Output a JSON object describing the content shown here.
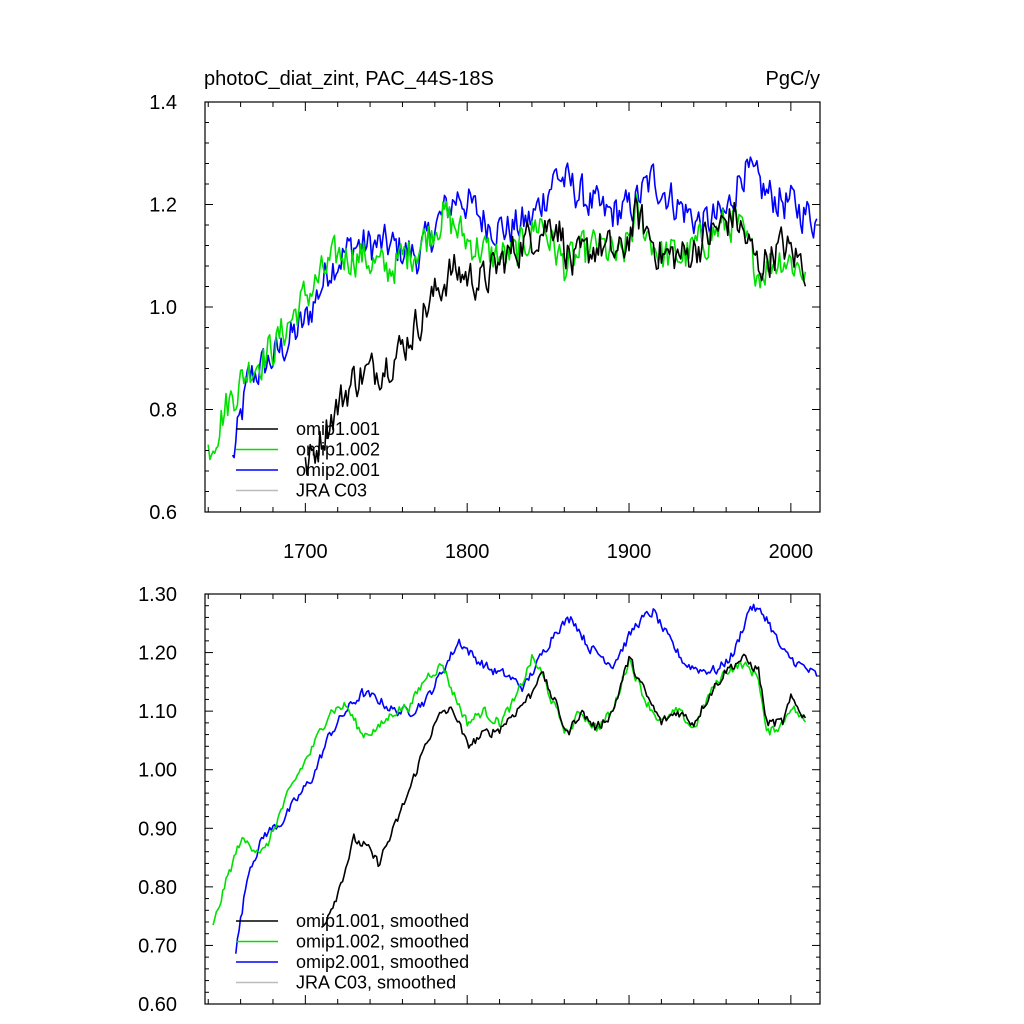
{
  "chart_data": [
    {
      "type": "line",
      "title": "photoC_diat_zint, PAC_44S-18S",
      "units": "PgC/y",
      "xlabel": "",
      "ylabel": "",
      "xlim": [
        1638,
        2018
      ],
      "ylim": [
        0.6,
        1.4
      ],
      "xticks": [
        1700,
        1800,
        1900,
        2000
      ],
      "yticks": [
        0.6,
        0.8,
        1.0,
        1.2,
        1.4
      ],
      "ytick_labels": [
        "0.6",
        "0.8",
        "1.0",
        "1.2",
        "1.4"
      ],
      "legend": [
        {
          "label": "omip1.001",
          "color": "#000000"
        },
        {
          "label": "omip1.002",
          "color": "#00e000"
        },
        {
          "label": "omip2.001",
          "color": "#0000ff"
        },
        {
          "label": "JRA C03",
          "color": "#bbbbbb"
        }
      ],
      "series": [
        {
          "name": "omip1.001",
          "color": "#000000",
          "noise": 0.035,
          "x": [
            1700,
            1715,
            1730,
            1745,
            1760,
            1775,
            1790,
            1800,
            1810,
            1825,
            1840,
            1855,
            1865,
            1880,
            1895,
            1905,
            1920,
            1935,
            1950,
            1965,
            1980,
            1995,
            2009
          ],
          "y": [
            0.68,
            0.78,
            0.86,
            0.88,
            0.92,
            1.0,
            1.07,
            1.06,
            1.05,
            1.1,
            1.14,
            1.17,
            1.08,
            1.12,
            1.1,
            1.18,
            1.1,
            1.1,
            1.14,
            1.18,
            1.08,
            1.12,
            1.08
          ]
        },
        {
          "name": "omip1.002",
          "color": "#00e000",
          "noise": 0.035,
          "x": [
            1640,
            1650,
            1665,
            1680,
            1700,
            1720,
            1735,
            1750,
            1770,
            1785,
            1800,
            1815,
            1830,
            1845,
            1860,
            1880,
            1895,
            1905,
            1920,
            1935,
            1950,
            1965,
            1980,
            1995,
            2009
          ],
          "y": [
            0.72,
            0.8,
            0.88,
            0.92,
            1.02,
            1.1,
            1.1,
            1.07,
            1.12,
            1.18,
            1.13,
            1.1,
            1.1,
            1.17,
            1.08,
            1.12,
            1.09,
            1.18,
            1.1,
            1.1,
            1.14,
            1.17,
            1.07,
            1.1,
            1.07
          ]
        },
        {
          "name": "omip2.001",
          "color": "#0000ff",
          "noise": 0.035,
          "x": [
            1655,
            1665,
            1680,
            1700,
            1715,
            1730,
            1750,
            1770,
            1785,
            1795,
            1810,
            1825,
            1840,
            1855,
            1870,
            1885,
            1900,
            1915,
            1930,
            1945,
            1960,
            1970,
            1985,
            2000,
            2016
          ],
          "y": [
            0.7,
            0.86,
            0.9,
            0.97,
            1.08,
            1.12,
            1.12,
            1.1,
            1.18,
            1.22,
            1.17,
            1.15,
            1.17,
            1.26,
            1.22,
            1.18,
            1.19,
            1.25,
            1.2,
            1.16,
            1.18,
            1.27,
            1.22,
            1.2,
            1.17
          ]
        }
      ]
    },
    {
      "type": "line",
      "title": "",
      "xlabel": "",
      "ylabel": "",
      "xlim": [
        1638,
        2018
      ],
      "ylim": [
        0.6,
        1.3
      ],
      "xticks": [
        1700,
        1800,
        1900,
        2000
      ],
      "yticks": [
        0.6,
        0.7,
        0.8,
        0.9,
        1.0,
        1.1,
        1.2,
        1.3
      ],
      "ytick_labels": [
        "0.60",
        "0.70",
        "0.80",
        "0.90",
        "1.00",
        "1.10",
        "1.20",
        "1.30"
      ],
      "legend": [
        {
          "label": "omip1.001, smoothed",
          "color": "#000000"
        },
        {
          "label": "omip1.002, smoothed",
          "color": "#00e000"
        },
        {
          "label": "omip2.001, smoothed",
          "color": "#0000ff"
        },
        {
          "label": "JRA C03, smoothed",
          "color": "#bbbbbb"
        }
      ],
      "series": [
        {
          "name": "omip1.001, smoothed",
          "color": "#000000",
          "noise": 0.008,
          "x": [
            1710,
            1720,
            1730,
            1737,
            1745,
            1755,
            1765,
            1775,
            1785,
            1792,
            1800,
            1810,
            1820,
            1830,
            1840,
            1845,
            1855,
            1862,
            1870,
            1880,
            1890,
            1900,
            1910,
            1920,
            1930,
            1940,
            1950,
            1960,
            1970,
            1980,
            1985,
            1995,
            2000,
            2009
          ],
          "y": [
            0.73,
            0.79,
            0.88,
            0.87,
            0.84,
            0.9,
            0.97,
            1.05,
            1.1,
            1.1,
            1.04,
            1.06,
            1.07,
            1.1,
            1.13,
            1.17,
            1.11,
            1.06,
            1.1,
            1.07,
            1.1,
            1.19,
            1.13,
            1.08,
            1.1,
            1.08,
            1.13,
            1.17,
            1.19,
            1.17,
            1.08,
            1.08,
            1.12,
            1.09
          ]
        },
        {
          "name": "omip1.002, smoothed",
          "color": "#00e000",
          "noise": 0.008,
          "x": [
            1643,
            1650,
            1660,
            1667,
            1675,
            1685,
            1695,
            1705,
            1715,
            1725,
            1735,
            1745,
            1755,
            1765,
            1775,
            1785,
            1790,
            1800,
            1810,
            1820,
            1830,
            1840,
            1845,
            1855,
            1862,
            1870,
            1880,
            1890,
            1900,
            1910,
            1920,
            1930,
            1940,
            1950,
            1960,
            1970,
            1980,
            1985,
            1995,
            2000,
            2009
          ],
          "y": [
            0.73,
            0.8,
            0.88,
            0.87,
            0.86,
            0.93,
            0.99,
            1.04,
            1.1,
            1.11,
            1.06,
            1.07,
            1.1,
            1.11,
            1.16,
            1.18,
            1.14,
            1.08,
            1.1,
            1.08,
            1.12,
            1.19,
            1.17,
            1.1,
            1.06,
            1.1,
            1.07,
            1.1,
            1.19,
            1.12,
            1.08,
            1.1,
            1.07,
            1.13,
            1.17,
            1.18,
            1.16,
            1.06,
            1.08,
            1.11,
            1.08
          ]
        },
        {
          "name": "omip2.001, smoothed",
          "color": "#0000ff",
          "noise": 0.008,
          "x": [
            1657,
            1665,
            1675,
            1685,
            1695,
            1705,
            1715,
            1725,
            1735,
            1745,
            1755,
            1765,
            1775,
            1785,
            1795,
            1805,
            1815,
            1825,
            1835,
            1845,
            1855,
            1865,
            1875,
            1890,
            1905,
            1915,
            1925,
            1935,
            1945,
            1955,
            1965,
            1975,
            1985,
            1995,
            2005,
            2016
          ],
          "y": [
            0.69,
            0.83,
            0.89,
            0.91,
            0.95,
            0.99,
            1.06,
            1.1,
            1.13,
            1.12,
            1.1,
            1.1,
            1.12,
            1.17,
            1.22,
            1.19,
            1.17,
            1.16,
            1.14,
            1.19,
            1.24,
            1.26,
            1.21,
            1.18,
            1.25,
            1.27,
            1.22,
            1.18,
            1.17,
            1.17,
            1.2,
            1.28,
            1.26,
            1.2,
            1.18,
            1.16
          ]
        }
      ]
    }
  ]
}
